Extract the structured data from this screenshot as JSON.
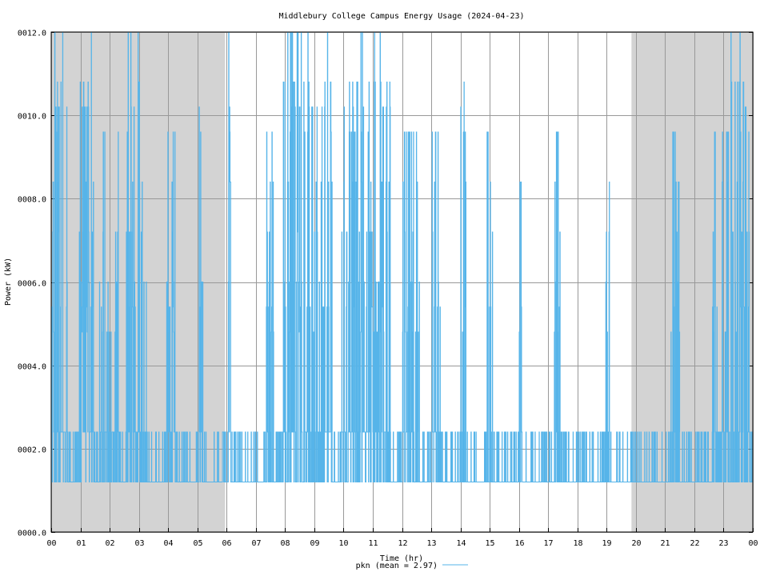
{
  "chart_data": {
    "type": "line",
    "title": "Middlebury College Campus Energy Usage (2024-04-23)",
    "xlabel": "Time (hr)",
    "ylabel": "Power (kW)",
    "xlim": [
      0,
      24
    ],
    "ylim": [
      0,
      12
    ],
    "x_ticks": [
      {
        "v": 0,
        "label": "00"
      },
      {
        "v": 1,
        "label": "01"
      },
      {
        "v": 2,
        "label": "02"
      },
      {
        "v": 3,
        "label": "03"
      },
      {
        "v": 4,
        "label": "04"
      },
      {
        "v": 5,
        "label": "05"
      },
      {
        "v": 6,
        "label": "06"
      },
      {
        "v": 7,
        "label": "07"
      },
      {
        "v": 8,
        "label": "08"
      },
      {
        "v": 9,
        "label": "09"
      },
      {
        "v": 10,
        "label": "10"
      },
      {
        "v": 11,
        "label": "11"
      },
      {
        "v": 12,
        "label": "12"
      },
      {
        "v": 13,
        "label": "13"
      },
      {
        "v": 14,
        "label": "14"
      },
      {
        "v": 15,
        "label": "15"
      },
      {
        "v": 16,
        "label": "16"
      },
      {
        "v": 17,
        "label": "17"
      },
      {
        "v": 18,
        "label": "18"
      },
      {
        "v": 19,
        "label": "19"
      },
      {
        "v": 20,
        "label": "20"
      },
      {
        "v": 21,
        "label": "21"
      },
      {
        "v": 22,
        "label": "22"
      },
      {
        "v": 23,
        "label": "23"
      },
      {
        "v": 24,
        "label": "00"
      }
    ],
    "y_ticks": [
      {
        "v": 0,
        "label": "0000.0"
      },
      {
        "v": 2,
        "label": "0002.0"
      },
      {
        "v": 4,
        "label": "0004.0"
      },
      {
        "v": 6,
        "label": "0006.0"
      },
      {
        "v": 8,
        "label": "0008.0"
      },
      {
        "v": 10,
        "label": "0010.0"
      },
      {
        "v": 12,
        "label": "0012.0"
      }
    ],
    "shaded_ranges": [
      [
        0,
        5.95
      ],
      [
        19.85,
        24
      ]
    ],
    "grid": true,
    "legend": {
      "position": "bottom",
      "entries": [
        "pkn (mean = 2.97)"
      ]
    },
    "series": [
      {
        "name": "pkn (mean = 2.97)",
        "color": "#56b4e9",
        "base_value": 1.2,
        "spike_levels": [
          2.4,
          4.8,
          5.4,
          6.0,
          7.2,
          8.4,
          9.6,
          10.2,
          10.8,
          12.0
        ],
        "active_periods": [
          {
            "from": 0.0,
            "to": 0.55,
            "level": "high"
          },
          {
            "from": 0.95,
            "to": 1.45,
            "level": "high"
          },
          {
            "from": 1.65,
            "to": 2.3,
            "level": "medium"
          },
          {
            "from": 2.55,
            "to": 3.25,
            "level": "high"
          },
          {
            "from": 3.9,
            "to": 4.25,
            "level": "medium"
          },
          {
            "from": 5.05,
            "to": 5.2,
            "level": "high"
          },
          {
            "from": 6.05,
            "to": 6.15,
            "level": "high"
          },
          {
            "from": 7.35,
            "to": 7.6,
            "level": "medium"
          },
          {
            "from": 7.9,
            "to": 9.6,
            "level": "high"
          },
          {
            "from": 9.9,
            "to": 11.6,
            "level": "high"
          },
          {
            "from": 12.0,
            "to": 12.6,
            "level": "medium"
          },
          {
            "from": 13.0,
            "to": 13.3,
            "level": "medium"
          },
          {
            "from": 14.0,
            "to": 14.2,
            "level": "high"
          },
          {
            "from": 14.9,
            "to": 15.1,
            "level": "medium"
          },
          {
            "from": 16.0,
            "to": 16.1,
            "level": "medium"
          },
          {
            "from": 17.2,
            "to": 17.4,
            "level": "medium"
          },
          {
            "from": 18.95,
            "to": 19.1,
            "level": "medium"
          },
          {
            "from": 21.2,
            "to": 21.5,
            "level": "medium"
          },
          {
            "from": 22.6,
            "to": 22.8,
            "level": "medium"
          },
          {
            "from": 22.95,
            "to": 23.9,
            "level": "high"
          }
        ]
      }
    ]
  }
}
